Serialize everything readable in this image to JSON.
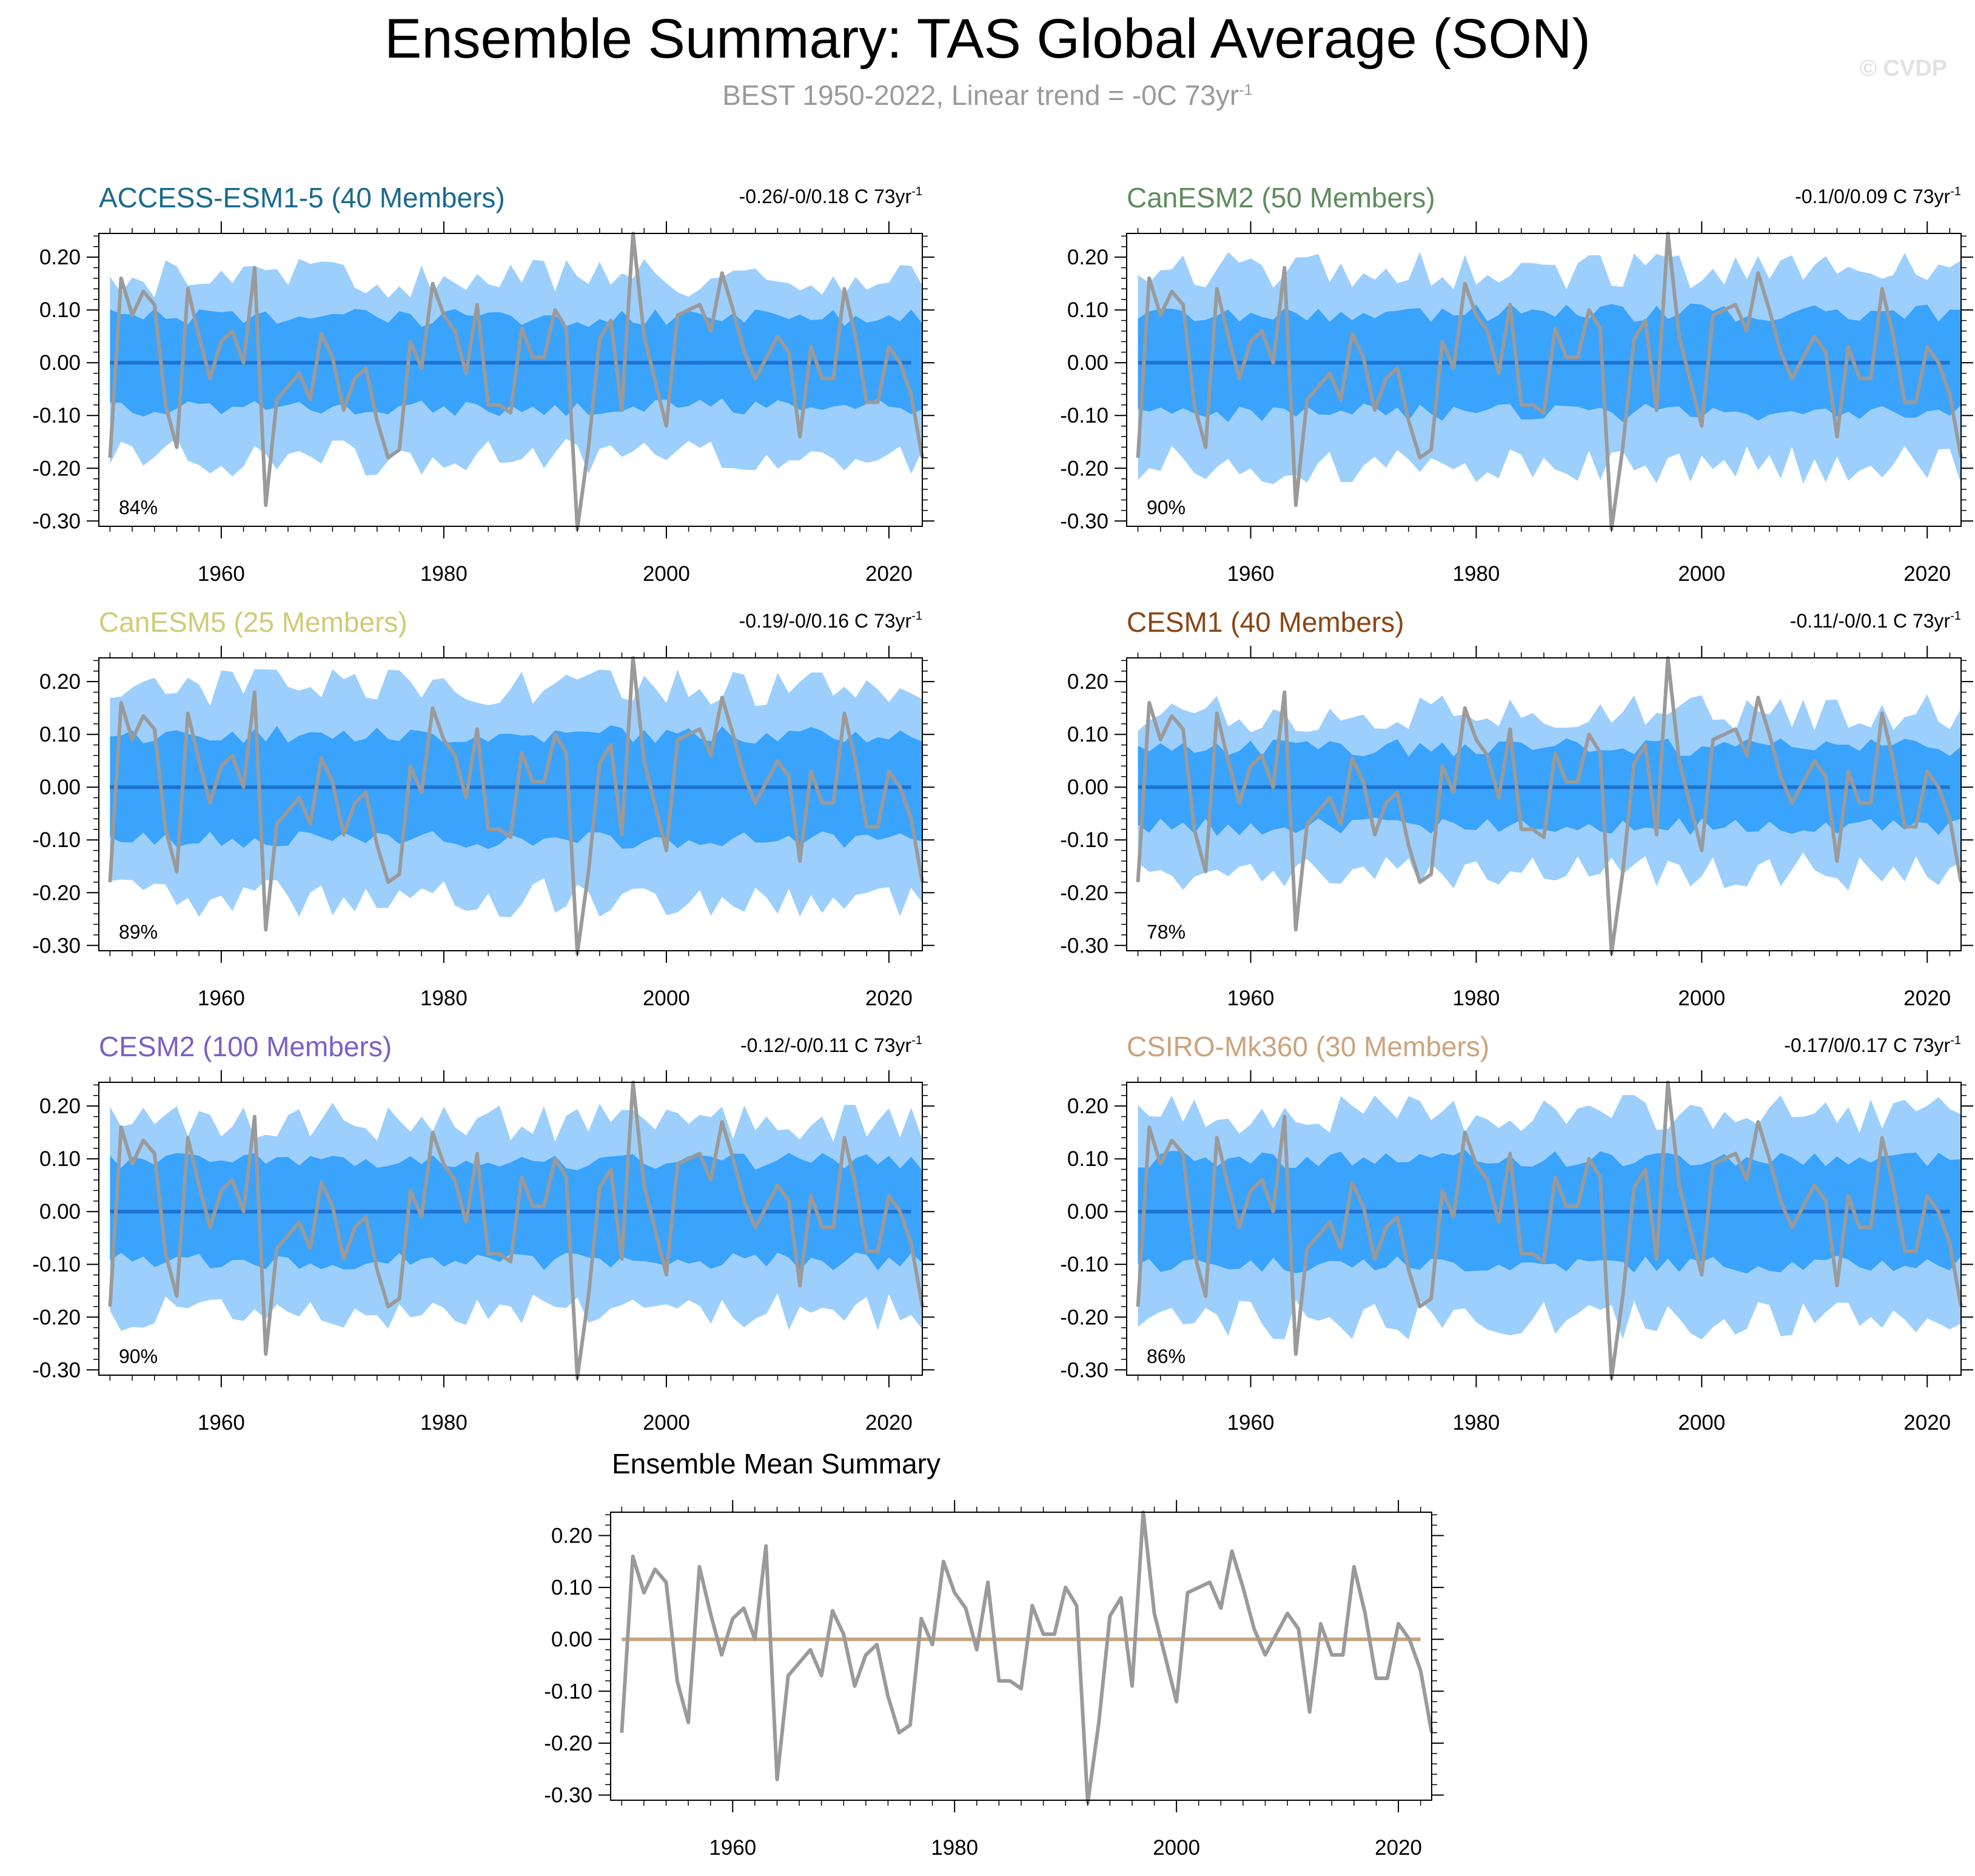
{
  "title": "Ensemble Summary: TAS Global Average (SON)",
  "subtitle": "BEST 1950-2022, Linear trend = -0C 73yr",
  "subtitle_sup": "-1",
  "trend_unit": " C 73yr",
  "trend_sup": "-1",
  "watermark": "© CVDP",
  "colors": {
    "outer_band": "#9dcffc",
    "inner_band": "#3aa3fc",
    "ensemble_mean": "#1e73d2",
    "observations": "#9a9a9a",
    "mean_summary_zero": "#c4a57c",
    "frame": "#000000"
  },
  "chart_data": {
    "type": "line",
    "x_start_year": 1950,
    "observations": {
      "name": "BEST",
      "values": [
        -0.18,
        0.16,
        0.09,
        0.135,
        0.11,
        -0.08,
        -0.16,
        0.14,
        0.05,
        -0.03,
        0.04,
        0.06,
        0.0,
        0.18,
        -0.27,
        -0.07,
        -0.045,
        -0.02,
        -0.07,
        0.055,
        0.01,
        -0.09,
        -0.03,
        -0.01,
        -0.11,
        -0.18,
        -0.165,
        0.04,
        -0.01,
        0.15,
        0.09,
        0.06,
        -0.02,
        0.11,
        -0.08,
        -0.08,
        -0.095,
        0.065,
        0.01,
        0.01,
        0.1,
        0.065,
        -0.315,
        -0.16,
        0.045,
        0.08,
        -0.09,
        0.245,
        0.05,
        -0.035,
        -0.12,
        0.09,
        0.1,
        0.11,
        0.06,
        0.17,
        0.1,
        0.02,
        -0.03,
        0.01,
        0.05,
        0.02,
        -0.14,
        0.03,
        -0.03,
        -0.03,
        0.14,
        0.05,
        -0.075,
        -0.075,
        0.03,
        0.0,
        -0.06,
        -0.18
      ]
    },
    "xaxis": {
      "range": [
        1949,
        2023
      ],
      "ticks": [
        "1960",
        "1980",
        "2000",
        "2020"
      ],
      "tick_values": [
        1960,
        1980,
        2000,
        2020
      ]
    },
    "yaxis": {
      "range": [
        -0.31,
        0.245
      ],
      "ticks": [
        "0.20",
        "0.10",
        "0.00",
        "-0.10",
        "-0.20",
        "-0.30"
      ],
      "tick_values": [
        0.2,
        0.1,
        0.0,
        -0.1,
        -0.2,
        -0.3
      ]
    },
    "panels": [
      {
        "title": "ACCESS-ESM1-5 (40 Members)",
        "color": "#1a6a8c",
        "trend_range": "-0.26/-0/0.18",
        "percentile": "84%",
        "outer_amplitude": 0.16,
        "inner_amplitude": 0.085,
        "seed": 1
      },
      {
        "title": "CanESM2 (50 Members)",
        "color": "#5e8c5e",
        "trend_range": "-0.1/0/0.09",
        "percentile": "90%",
        "outer_amplitude": 0.175,
        "inner_amplitude": 0.095,
        "seed": 2
      },
      {
        "title": "CanESM5 (25 Members)",
        "color": "#cfcb78",
        "trend_range": "-0.19/-0/0.16",
        "percentile": "89%",
        "outer_amplitude": 0.19,
        "inner_amplitude": 0.1,
        "seed": 3
      },
      {
        "title": "CESM1 (40 Members)",
        "color": "#8b4513",
        "trend_range": "-0.11/-0/0.1",
        "percentile": "78%",
        "outer_amplitude": 0.14,
        "inner_amplitude": 0.075,
        "seed": 4
      },
      {
        "title": "CESM2 (100 Members)",
        "color": "#7b5fc6",
        "trend_range": "-0.12/-0/0.11",
        "percentile": "90%",
        "outer_amplitude": 0.17,
        "inner_amplitude": 0.095,
        "seed": 5
      },
      {
        "title": "CSIRO-Mk360 (30 Members)",
        "color": "#cba47c",
        "trend_range": "-0.17/0/0.17",
        "percentile": "86%",
        "outer_amplitude": 0.185,
        "inner_amplitude": 0.1,
        "seed": 6
      }
    ],
    "mean_summary": {
      "title": "Ensemble Mean Summary"
    }
  }
}
